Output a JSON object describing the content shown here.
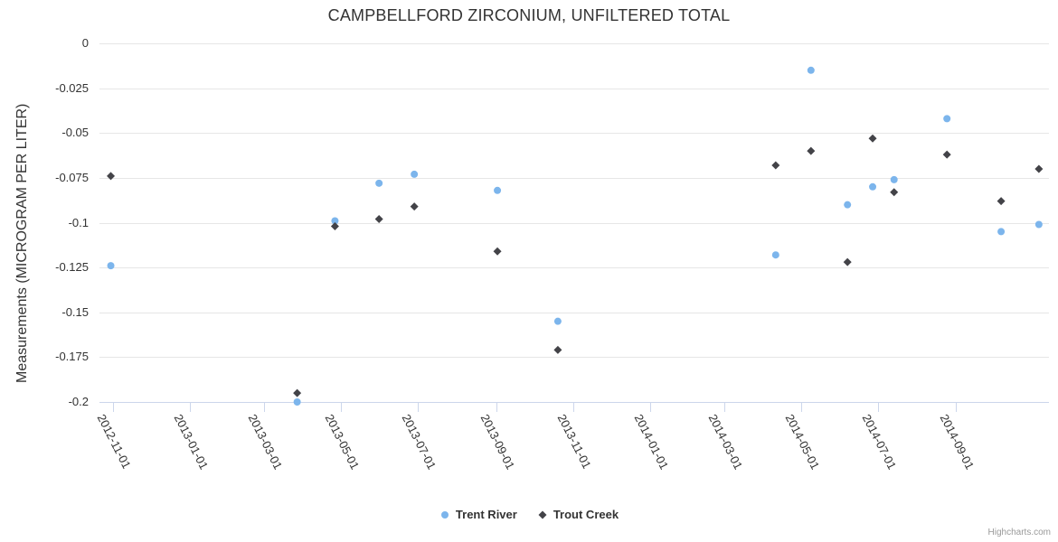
{
  "page": {
    "credit": "Highcharts.com"
  },
  "colors": {
    "background": "#ffffff",
    "grid": "#e6e6e6",
    "axis_line": "#ccd6eb",
    "text": "#333333",
    "credit_text": "#999999",
    "series_trent": "#7cb5ec",
    "series_trout": "#434348"
  },
  "chart_data": {
    "type": "scatter",
    "title": "CAMPBELLFORD ZIRCONIUM, UNFILTERED TOTAL",
    "xlabel": "",
    "ylabel": "Measurements (MICROGRAM PER LITER)",
    "grid": true,
    "legend_position": "bottom-center",
    "x_axis": {
      "type": "datetime",
      "min": "2012-10-21",
      "max": "2014-11-14",
      "tick_labels": [
        "2012-11-01",
        "2013-01-01",
        "2013-03-01",
        "2013-05-01",
        "2013-07-01",
        "2013-09-01",
        "2013-11-01",
        "2014-01-01",
        "2014-03-01",
        "2014-05-01",
        "2014-07-01",
        "2014-09-01"
      ]
    },
    "y_axis": {
      "min": -0.2,
      "max": 0,
      "ticks": [
        0,
        -0.025,
        -0.05,
        -0.075,
        -0.1,
        -0.125,
        -0.15,
        -0.175,
        -0.2
      ]
    },
    "series": [
      {
        "name": "Trent River",
        "color": "#7cb5ec",
        "marker": "circle",
        "points": [
          {
            "x": "2012-10-30",
            "y": -0.124
          },
          {
            "x": "2013-03-27",
            "y": -0.2
          },
          {
            "x": "2013-04-26",
            "y": -0.099
          },
          {
            "x": "2013-05-31",
            "y": -0.078
          },
          {
            "x": "2013-06-28",
            "y": -0.073
          },
          {
            "x": "2013-09-02",
            "y": -0.082
          },
          {
            "x": "2013-10-20",
            "y": -0.155
          },
          {
            "x": "2014-04-11",
            "y": -0.118
          },
          {
            "x": "2014-05-09",
            "y": -0.015
          },
          {
            "x": "2014-06-07",
            "y": -0.09
          },
          {
            "x": "2014-06-27",
            "y": -0.08
          },
          {
            "x": "2014-07-14",
            "y": -0.076
          },
          {
            "x": "2014-08-25",
            "y": -0.042
          },
          {
            "x": "2014-10-07",
            "y": -0.105
          },
          {
            "x": "2014-11-06",
            "y": -0.101
          }
        ]
      },
      {
        "name": "Trout Creek",
        "color": "#434348",
        "marker": "diamond",
        "points": [
          {
            "x": "2012-10-30",
            "y": -0.074
          },
          {
            "x": "2013-03-27",
            "y": -0.195
          },
          {
            "x": "2013-04-26",
            "y": -0.102
          },
          {
            "x": "2013-05-31",
            "y": -0.098
          },
          {
            "x": "2013-06-28",
            "y": -0.091
          },
          {
            "x": "2013-09-02",
            "y": -0.116
          },
          {
            "x": "2013-10-20",
            "y": -0.171
          },
          {
            "x": "2014-04-11",
            "y": -0.068
          },
          {
            "x": "2014-05-09",
            "y": -0.06
          },
          {
            "x": "2014-06-07",
            "y": -0.122
          },
          {
            "x": "2014-06-27",
            "y": -0.053
          },
          {
            "x": "2014-07-14",
            "y": -0.083
          },
          {
            "x": "2014-08-25",
            "y": -0.062
          },
          {
            "x": "2014-10-07",
            "y": -0.088
          },
          {
            "x": "2014-11-06",
            "y": -0.07
          }
        ]
      }
    ]
  }
}
